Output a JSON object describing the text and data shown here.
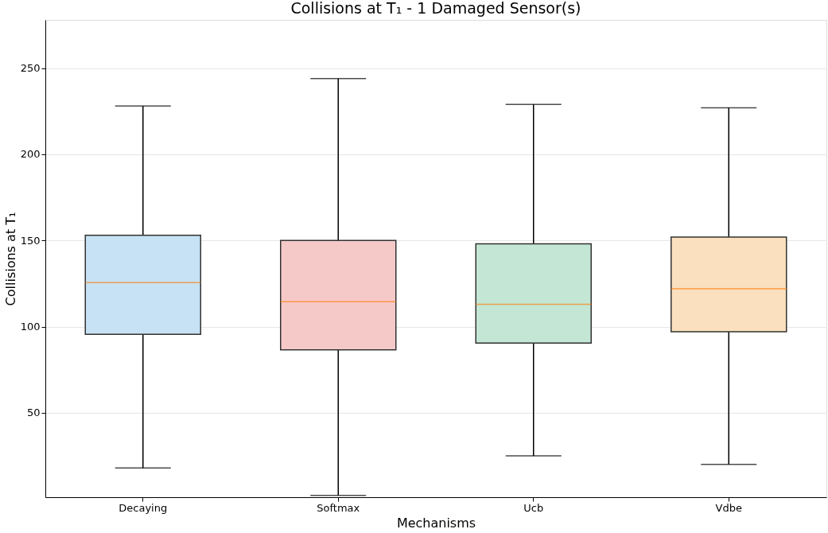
{
  "chart_data": {
    "type": "box",
    "title": "Collisions at T₁ - 1 Damaged Sensor(s)",
    "xlabel": "Mechanisms",
    "ylabel": "Collisions at T₁",
    "categories": [
      "Decaying",
      "Softmax",
      "Ucb",
      "Vdbe"
    ],
    "colors": [
      "#c6e2f4",
      "#f6c9c9",
      "#c3e7d4",
      "#fae0be"
    ],
    "boxes": [
      {
        "low": 18,
        "q1": 95.5,
        "median": 125.5,
        "q3": 153,
        "high": 228
      },
      {
        "low": 2,
        "q1": 86.5,
        "median": 114.5,
        "q3": 150,
        "high": 244
      },
      {
        "low": 25,
        "q1": 90.5,
        "median": 113,
        "q3": 148,
        "high": 229
      },
      {
        "low": 20,
        "q1": 97,
        "median": 122,
        "q3": 152,
        "high": 227
      }
    ],
    "ylim": [
      1,
      278
    ],
    "yticks": [
      50,
      100,
      150,
      200,
      250
    ],
    "grid": "y"
  }
}
